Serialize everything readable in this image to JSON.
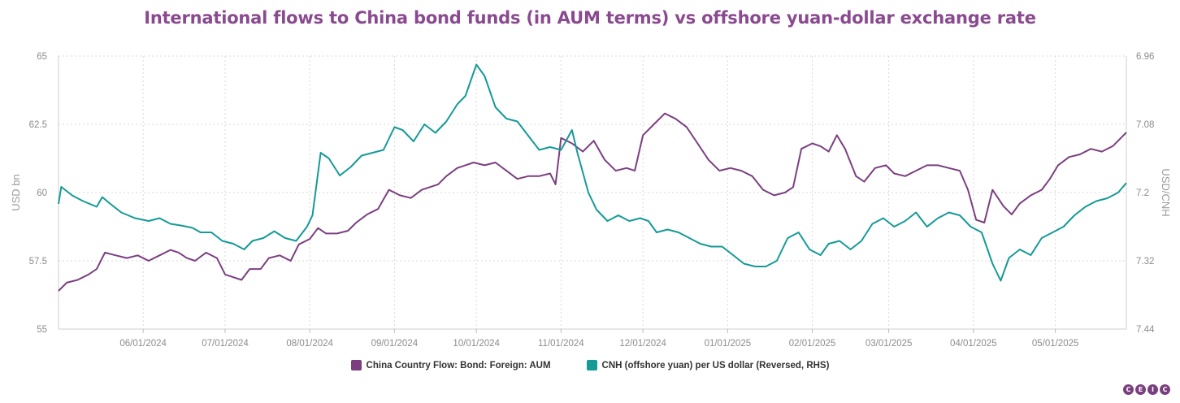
{
  "chart_data": {
    "type": "line",
    "title": "International flows to China bond funds (in AUM terms) vs offshore yuan-dollar exchange rate",
    "x_start": "2024-05-01",
    "x_end": "2025-05-27",
    "x_ticks": [
      "06/01/2024",
      "07/01/2024",
      "08/01/2024",
      "09/01/2024",
      "10/01/2024",
      "11/01/2024",
      "12/01/2024",
      "01/01/2025",
      "02/01/2025",
      "03/01/2025",
      "04/01/2025",
      "05/01/2025"
    ],
    "y_left": {
      "label": "USD bn",
      "min": 55,
      "max": 65,
      "ticks": [
        "55",
        "57.5",
        "60",
        "62.5",
        "65"
      ]
    },
    "y_right": {
      "label": "USD/CNH",
      "min": 6.96,
      "max": 7.44,
      "reversed": true,
      "ticks": [
        "6.96",
        "7.08",
        "7.2",
        "7.32",
        "7.44"
      ]
    },
    "grid": true,
    "legend_position": "bottom",
    "series": [
      {
        "name": "China Country Flow: Bond: Foreign: AUM",
        "axis": "left",
        "color": "#7b3f80",
        "points": [
          [
            "2024-05-01",
            56.4
          ],
          [
            "2024-05-04",
            56.7
          ],
          [
            "2024-05-08",
            56.8
          ],
          [
            "2024-05-12",
            57.0
          ],
          [
            "2024-05-15",
            57.2
          ],
          [
            "2024-05-18",
            57.8
          ],
          [
            "2024-05-22",
            57.7
          ],
          [
            "2024-05-26",
            57.6
          ],
          [
            "2024-05-30",
            57.7
          ],
          [
            "2024-06-03",
            57.5
          ],
          [
            "2024-06-07",
            57.7
          ],
          [
            "2024-06-11",
            57.9
          ],
          [
            "2024-06-14",
            57.8
          ],
          [
            "2024-06-17",
            57.6
          ],
          [
            "2024-06-20",
            57.5
          ],
          [
            "2024-06-24",
            57.8
          ],
          [
            "2024-06-28",
            57.6
          ],
          [
            "2024-07-01",
            57.0
          ],
          [
            "2024-07-04",
            56.9
          ],
          [
            "2024-07-07",
            56.8
          ],
          [
            "2024-07-10",
            57.2
          ],
          [
            "2024-07-14",
            57.2
          ],
          [
            "2024-07-17",
            57.6
          ],
          [
            "2024-07-21",
            57.7
          ],
          [
            "2024-07-25",
            57.5
          ],
          [
            "2024-07-28",
            58.1
          ],
          [
            "2024-08-01",
            58.3
          ],
          [
            "2024-08-04",
            58.7
          ],
          [
            "2024-08-07",
            58.5
          ],
          [
            "2024-08-11",
            58.5
          ],
          [
            "2024-08-15",
            58.6
          ],
          [
            "2024-08-18",
            58.9
          ],
          [
            "2024-08-22",
            59.2
          ],
          [
            "2024-08-26",
            59.4
          ],
          [
            "2024-08-30",
            60.1
          ],
          [
            "2024-09-03",
            59.9
          ],
          [
            "2024-09-07",
            59.8
          ],
          [
            "2024-09-11",
            60.1
          ],
          [
            "2024-09-14",
            60.2
          ],
          [
            "2024-09-17",
            60.3
          ],
          [
            "2024-09-20",
            60.6
          ],
          [
            "2024-09-24",
            60.9
          ],
          [
            "2024-09-27",
            61.0
          ],
          [
            "2024-09-30",
            61.1
          ],
          [
            "2024-10-04",
            61.0
          ],
          [
            "2024-10-08",
            61.1
          ],
          [
            "2024-10-12",
            60.8
          ],
          [
            "2024-10-16",
            60.5
          ],
          [
            "2024-10-20",
            60.6
          ],
          [
            "2024-10-24",
            60.6
          ],
          [
            "2024-10-28",
            60.7
          ],
          [
            "2024-10-30",
            60.3
          ],
          [
            "2024-11-01",
            62.0
          ],
          [
            "2024-11-05",
            61.8
          ],
          [
            "2024-11-09",
            61.5
          ],
          [
            "2024-11-13",
            61.9
          ],
          [
            "2024-11-17",
            61.2
          ],
          [
            "2024-11-21",
            60.8
          ],
          [
            "2024-11-25",
            60.9
          ],
          [
            "2024-11-28",
            60.8
          ],
          [
            "2024-12-01",
            62.1
          ],
          [
            "2024-12-05",
            62.5
          ],
          [
            "2024-12-09",
            62.9
          ],
          [
            "2024-12-13",
            62.7
          ],
          [
            "2024-12-17",
            62.4
          ],
          [
            "2024-12-21",
            61.8
          ],
          [
            "2024-12-25",
            61.2
          ],
          [
            "2024-12-29",
            60.8
          ],
          [
            "2025-01-02",
            60.9
          ],
          [
            "2025-01-06",
            60.8
          ],
          [
            "2025-01-10",
            60.6
          ],
          [
            "2025-01-14",
            60.1
          ],
          [
            "2025-01-18",
            59.9
          ],
          [
            "2025-01-22",
            60.0
          ],
          [
            "2025-01-25",
            60.2
          ],
          [
            "2025-01-28",
            61.6
          ],
          [
            "2025-02-01",
            61.8
          ],
          [
            "2025-02-04",
            61.7
          ],
          [
            "2025-02-07",
            61.5
          ],
          [
            "2025-02-10",
            62.1
          ],
          [
            "2025-02-13",
            61.6
          ],
          [
            "2025-02-17",
            60.6
          ],
          [
            "2025-02-20",
            60.4
          ],
          [
            "2025-02-24",
            60.9
          ],
          [
            "2025-02-28",
            61.0
          ],
          [
            "2025-03-03",
            60.7
          ],
          [
            "2025-03-07",
            60.6
          ],
          [
            "2025-03-11",
            60.8
          ],
          [
            "2025-03-15",
            61.0
          ],
          [
            "2025-03-19",
            61.0
          ],
          [
            "2025-03-23",
            60.9
          ],
          [
            "2025-03-27",
            60.8
          ],
          [
            "2025-03-30",
            60.1
          ],
          [
            "2025-04-02",
            59.0
          ],
          [
            "2025-04-05",
            58.9
          ],
          [
            "2025-04-08",
            60.1
          ],
          [
            "2025-04-12",
            59.5
          ],
          [
            "2025-04-15",
            59.2
          ],
          [
            "2025-04-18",
            59.6
          ],
          [
            "2025-04-22",
            59.9
          ],
          [
            "2025-04-26",
            60.1
          ],
          [
            "2025-04-29",
            60.5
          ],
          [
            "2025-05-02",
            61.0
          ],
          [
            "2025-05-06",
            61.3
          ],
          [
            "2025-05-10",
            61.4
          ],
          [
            "2025-05-14",
            61.6
          ],
          [
            "2025-05-18",
            61.5
          ],
          [
            "2025-05-22",
            61.7
          ],
          [
            "2025-05-27",
            62.2
          ]
        ]
      },
      {
        "name": "CNH (offshore yuan) per US dollar (Reversed, RHS)",
        "axis": "right",
        "color": "#159a96",
        "points": [
          [
            "2024-05-01",
            7.22
          ],
          [
            "2024-05-02",
            7.19
          ],
          [
            "2024-05-06",
            7.205
          ],
          [
            "2024-05-10",
            7.215
          ],
          [
            "2024-05-15",
            7.225
          ],
          [
            "2024-05-17",
            7.208
          ],
          [
            "2024-05-20",
            7.22
          ],
          [
            "2024-05-24",
            7.235
          ],
          [
            "2024-05-29",
            7.245
          ],
          [
            "2024-06-03",
            7.25
          ],
          [
            "2024-06-07",
            7.245
          ],
          [
            "2024-06-11",
            7.255
          ],
          [
            "2024-06-15",
            7.258
          ],
          [
            "2024-06-19",
            7.262
          ],
          [
            "2024-06-22",
            7.27
          ],
          [
            "2024-06-26",
            7.27
          ],
          [
            "2024-06-30",
            7.285
          ],
          [
            "2024-07-04",
            7.29
          ],
          [
            "2024-07-08",
            7.3
          ],
          [
            "2024-07-11",
            7.285
          ],
          [
            "2024-07-15",
            7.28
          ],
          [
            "2024-07-19",
            7.268
          ],
          [
            "2024-07-23",
            7.28
          ],
          [
            "2024-07-27",
            7.285
          ],
          [
            "2024-07-31",
            7.26
          ],
          [
            "2024-08-02",
            7.24
          ],
          [
            "2024-08-05",
            7.13
          ],
          [
            "2024-08-08",
            7.14
          ],
          [
            "2024-08-12",
            7.17
          ],
          [
            "2024-08-16",
            7.155
          ],
          [
            "2024-08-20",
            7.135
          ],
          [
            "2024-08-24",
            7.13
          ],
          [
            "2024-08-28",
            7.125
          ],
          [
            "2024-09-01",
            7.085
          ],
          [
            "2024-09-04",
            7.09
          ],
          [
            "2024-09-08",
            7.11
          ],
          [
            "2024-09-12",
            7.08
          ],
          [
            "2024-09-16",
            7.095
          ],
          [
            "2024-09-20",
            7.075
          ],
          [
            "2024-09-24",
            7.045
          ],
          [
            "2024-09-27",
            7.03
          ],
          [
            "2024-10-01",
            6.975
          ],
          [
            "2024-10-04",
            6.995
          ],
          [
            "2024-10-08",
            7.05
          ],
          [
            "2024-10-12",
            7.07
          ],
          [
            "2024-10-16",
            7.075
          ],
          [
            "2024-10-20",
            7.1
          ],
          [
            "2024-10-24",
            7.125
          ],
          [
            "2024-10-28",
            7.12
          ],
          [
            "2024-11-01",
            7.125
          ],
          [
            "2024-11-05",
            7.09
          ],
          [
            "2024-11-07",
            7.13
          ],
          [
            "2024-11-11",
            7.2
          ],
          [
            "2024-11-14",
            7.23
          ],
          [
            "2024-11-18",
            7.25
          ],
          [
            "2024-11-22",
            7.24
          ],
          [
            "2024-11-26",
            7.25
          ],
          [
            "2024-11-30",
            7.245
          ],
          [
            "2024-12-03",
            7.25
          ],
          [
            "2024-12-06",
            7.27
          ],
          [
            "2024-12-10",
            7.265
          ],
          [
            "2024-12-14",
            7.27
          ],
          [
            "2024-12-18",
            7.28
          ],
          [
            "2024-12-22",
            7.29
          ],
          [
            "2024-12-26",
            7.295
          ],
          [
            "2024-12-30",
            7.295
          ],
          [
            "2025-01-03",
            7.31
          ],
          [
            "2025-01-07",
            7.325
          ],
          [
            "2025-01-11",
            7.33
          ],
          [
            "2025-01-15",
            7.33
          ],
          [
            "2025-01-19",
            7.32
          ],
          [
            "2025-01-23",
            7.28
          ],
          [
            "2025-01-27",
            7.27
          ],
          [
            "2025-01-31",
            7.3
          ],
          [
            "2025-02-04",
            7.31
          ],
          [
            "2025-02-07",
            7.29
          ],
          [
            "2025-02-11",
            7.285
          ],
          [
            "2025-02-15",
            7.3
          ],
          [
            "2025-02-19",
            7.285
          ],
          [
            "2025-02-23",
            7.255
          ],
          [
            "2025-02-27",
            7.245
          ],
          [
            "2025-03-03",
            7.26
          ],
          [
            "2025-03-07",
            7.25
          ],
          [
            "2025-03-11",
            7.235
          ],
          [
            "2025-03-15",
            7.26
          ],
          [
            "2025-03-19",
            7.245
          ],
          [
            "2025-03-23",
            7.235
          ],
          [
            "2025-03-27",
            7.24
          ],
          [
            "2025-03-31",
            7.26
          ],
          [
            "2025-04-04",
            7.27
          ],
          [
            "2025-04-08",
            7.325
          ],
          [
            "2025-04-11",
            7.355
          ],
          [
            "2025-04-14",
            7.315
          ],
          [
            "2025-04-18",
            7.3
          ],
          [
            "2025-04-22",
            7.31
          ],
          [
            "2025-04-26",
            7.28
          ],
          [
            "2025-04-30",
            7.27
          ],
          [
            "2025-05-04",
            7.26
          ],
          [
            "2025-05-08",
            7.24
          ],
          [
            "2025-05-12",
            7.225
          ],
          [
            "2025-05-16",
            7.215
          ],
          [
            "2025-05-20",
            7.21
          ],
          [
            "2025-05-24",
            7.2
          ],
          [
            "2025-05-27",
            7.183
          ]
        ]
      }
    ]
  },
  "logo": {
    "letters": [
      "C",
      "E",
      "I",
      "C"
    ]
  }
}
